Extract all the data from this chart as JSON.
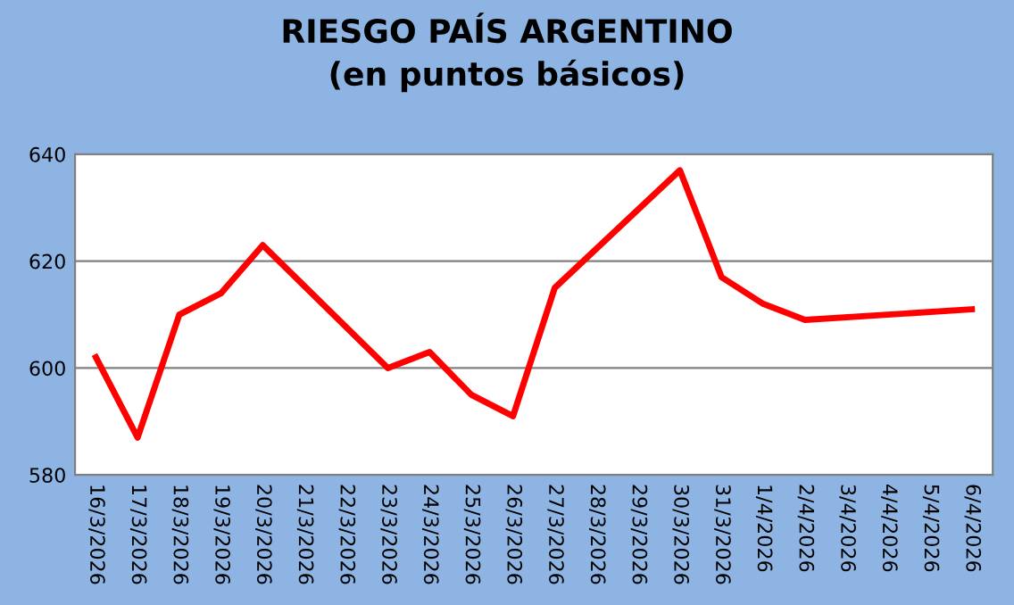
{
  "chart_data": {
    "type": "line",
    "title": "RIESGO PAÍS ARGENTINO\n(en puntos básicos)",
    "x": [
      "2026-03-16",
      "2026-03-17",
      "2026-03-18",
      "2026-03-19",
      "2026-03-20",
      "2026-03-23",
      "2026-03-24",
      "2026-03-25",
      "2026-03-26",
      "2026-03-27",
      "2026-03-30",
      "2026-03-31",
      "2026-04-01",
      "2026-04-02",
      "2026-04-06"
    ],
    "series": [
      {
        "color": "#ff0000",
        "values": [
          602,
          587,
          610,
          614,
          623,
          600,
          603,
          595,
          591,
          615,
          637,
          617,
          612,
          609,
          611
        ]
      }
    ],
    "xlim": [
      "2026-03-15T12:00",
      "2026-04-06T12:00"
    ],
    "xticks": [
      {
        "value": "2026-03-16",
        "label": "16/3/2026"
      },
      {
        "value": "2026-03-17",
        "label": "17/3/2026"
      },
      {
        "value": "2026-03-18",
        "label": "18/3/2026"
      },
      {
        "value": "2026-03-19",
        "label": "19/3/2026"
      },
      {
        "value": "2026-03-20",
        "label": "20/3/2026"
      },
      {
        "value": "2026-03-21",
        "label": "21/3/2026"
      },
      {
        "value": "2026-03-22",
        "label": "22/3/2026"
      },
      {
        "value": "2026-03-23",
        "label": "23/3/2026"
      },
      {
        "value": "2026-03-24",
        "label": "24/3/2026"
      },
      {
        "value": "2026-03-25",
        "label": "25/3/2026"
      },
      {
        "value": "2026-03-26",
        "label": "26/3/2026"
      },
      {
        "value": "2026-03-27",
        "label": "27/3/2026"
      },
      {
        "value": "2026-03-28",
        "label": "28/3/2026"
      },
      {
        "value": "2026-03-29",
        "label": "29/3/2026"
      },
      {
        "value": "2026-03-30",
        "label": "30/3/2026"
      },
      {
        "value": "2026-03-31",
        "label": "31/3/2026"
      },
      {
        "value": "2026-04-01",
        "label": "1/4/2026"
      },
      {
        "value": "2026-04-02",
        "label": "2/4/2026"
      },
      {
        "value": "2026-04-03",
        "label": "3/4/2026"
      },
      {
        "value": "2026-04-04",
        "label": "4/4/2026"
      },
      {
        "value": "2026-04-05",
        "label": "5/4/2026"
      },
      {
        "value": "2026-04-06",
        "label": "6/4/2026"
      }
    ],
    "ylim": [
      580,
      640
    ],
    "yticks": [
      580,
      600,
      620,
      640
    ],
    "grid": "y",
    "legend": false,
    "marker": "none",
    "line_style": "solid"
  }
}
